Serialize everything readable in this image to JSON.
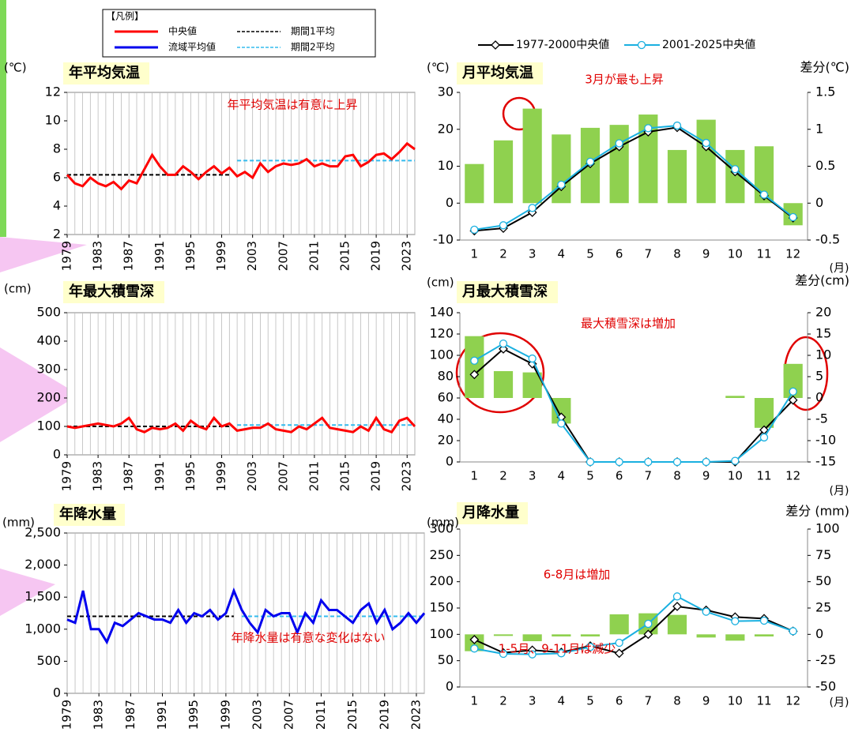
{
  "legend": {
    "title": "【凡例】",
    "items": [
      {
        "label": "中央値",
        "color": "#ff0000",
        "dashed": false
      },
      {
        "label": "期間1平均",
        "color": "#000000",
        "dashed": true
      },
      {
        "label": "流域平均値",
        "color": "#0000ee",
        "dashed": false
      },
      {
        "label": "期間2平均",
        "color": "#33bbee",
        "dashed": true
      }
    ]
  },
  "chart_data": [
    {
      "type": "line",
      "title": "年平均気温",
      "y_unit": "(℃)",
      "annotations": [
        "年平均気温は有意に上昇"
      ],
      "x": [
        1979,
        1980,
        1981,
        1982,
        1983,
        1984,
        1985,
        1986,
        1987,
        1988,
        1989,
        1990,
        1991,
        1992,
        1993,
        1994,
        1995,
        1996,
        1997,
        1998,
        1999,
        2000,
        2001,
        2002,
        2003,
        2004,
        2005,
        2006,
        2007,
        2008,
        2009,
        2010,
        2011,
        2012,
        2013,
        2014,
        2015,
        2016,
        2017,
        2018,
        2019,
        2020,
        2021,
        2022,
        2023,
        2024
      ],
      "xlim": [
        1979,
        2024
      ],
      "xticks": [
        1979,
        1983,
        1987,
        1991,
        1995,
        1999,
        2003,
        2007,
        2011,
        2015,
        2019,
        2023
      ],
      "ylim": [
        2,
        12
      ],
      "yticks": [
        2,
        4,
        6,
        8,
        10,
        12
      ],
      "grid": true,
      "series": [
        {
          "color": "#ff0000",
          "values": [
            6.2,
            5.6,
            5.4,
            6.0,
            5.6,
            5.4,
            5.7,
            5.2,
            5.8,
            5.6,
            6.6,
            7.6,
            6.8,
            6.2,
            6.2,
            6.8,
            6.4,
            5.9,
            6.4,
            6.8,
            6.3,
            6.7,
            6.1,
            6.4,
            6.0,
            7.0,
            6.4,
            6.8,
            7.0,
            6.9,
            7.0,
            7.3,
            6.8,
            7.0,
            6.8,
            6.8,
            7.5,
            7.6,
            6.8,
            7.1,
            7.6,
            7.7,
            7.3,
            7.8,
            8.4,
            8.0
          ]
        }
      ],
      "period_means": [
        {
          "color": "#000000",
          "x": [
            1979,
            2000
          ],
          "value": 6.2
        },
        {
          "color": "#33bbee",
          "x": [
            2001,
            2024
          ],
          "value": 7.2
        }
      ]
    },
    {
      "type": "combo",
      "title": "月平均気温",
      "y_unit": "(℃)",
      "y2_unit": "差分(℃)",
      "x_unit": "(月)",
      "annotations": [
        "3月が最も上昇"
      ],
      "categories": [
        "1",
        "2",
        "3",
        "4",
        "5",
        "6",
        "7",
        "8",
        "9",
        "10",
        "11",
        "12"
      ],
      "ylim": [
        -10,
        30
      ],
      "yticks": [
        -10,
        0,
        10,
        20,
        30
      ],
      "y2lim": [
        -0.5,
        1.5
      ],
      "y2ticks": [
        -0.5,
        0,
        0.5,
        1,
        1.5
      ],
      "series": [
        {
          "name": "1977-2000中央値",
          "color": "#000000",
          "marker": "diamond",
          "values": [
            -7.5,
            -6.8,
            -2.5,
            4.5,
            10.7,
            15.3,
            19.3,
            20.5,
            15.3,
            8.5,
            2,
            -4
          ]
        },
        {
          "name": "2001-2025中央値",
          "color": "#1ab0e0",
          "marker": "circle",
          "values": [
            -7.2,
            -6,
            -1.3,
            5,
            11.2,
            16.2,
            20.3,
            21,
            16.3,
            9.2,
            2.3,
            -3.8
          ]
        },
        {
          "type": "bar",
          "axis": "y2",
          "color": "#8fd14f",
          "values": [
            0.53,
            0.85,
            1.28,
            0.93,
            1.02,
            1.06,
            1.2,
            0.72,
            1.13,
            0.72,
            0.77,
            -0.3
          ]
        }
      ]
    },
    {
      "type": "line",
      "title": "年最大積雪深",
      "y_unit": "(cm)",
      "annotations": [],
      "x": [
        1979,
        1980,
        1981,
        1982,
        1983,
        1984,
        1985,
        1986,
        1987,
        1988,
        1989,
        1990,
        1991,
        1992,
        1993,
        1994,
        1995,
        1996,
        1997,
        1998,
        1999,
        2000,
        2001,
        2002,
        2003,
        2004,
        2005,
        2006,
        2007,
        2008,
        2009,
        2010,
        2011,
        2012,
        2013,
        2014,
        2015,
        2016,
        2017,
        2018,
        2019,
        2020,
        2021,
        2022,
        2023,
        2024
      ],
      "xlim": [
        1979,
        2024
      ],
      "xticks": [
        1979,
        1983,
        1987,
        1991,
        1995,
        1999,
        2003,
        2007,
        2011,
        2015,
        2019,
        2023
      ],
      "ylim": [
        0,
        500
      ],
      "yticks": [
        0,
        100,
        200,
        300,
        400,
        500
      ],
      "grid": true,
      "series": [
        {
          "color": "#ff0000",
          "values": [
            100,
            95,
            100,
            105,
            110,
            105,
            100,
            110,
            130,
            90,
            80,
            95,
            90,
            95,
            110,
            85,
            120,
            100,
            90,
            130,
            100,
            110,
            85,
            90,
            95,
            95,
            110,
            90,
            85,
            80,
            100,
            90,
            110,
            130,
            95,
            90,
            85,
            80,
            100,
            85,
            130,
            90,
            80,
            120,
            130,
            100
          ]
        }
      ],
      "period_means": [
        {
          "color": "#000000",
          "x": [
            1979,
            2000
          ],
          "value": 100
        },
        {
          "color": "#33bbee",
          "x": [
            2001,
            2024
          ],
          "value": 105
        }
      ]
    },
    {
      "type": "combo",
      "title": "月最大積雪深",
      "y_unit": "(cm)",
      "y2_unit": "差分(cm)",
      "x_unit": "(月)",
      "annotations": [
        "最大積雪深は増加"
      ],
      "categories": [
        "1",
        "2",
        "3",
        "4",
        "5",
        "6",
        "7",
        "8",
        "9",
        "10",
        "11",
        "12"
      ],
      "ylim": [
        0,
        140
      ],
      "yticks": [
        0,
        20,
        40,
        60,
        80,
        100,
        120,
        140
      ],
      "y2lim": [
        -15,
        20
      ],
      "y2ticks": [
        -15,
        -10,
        -5,
        0,
        5,
        10,
        15,
        20
      ],
      "series": [
        {
          "color": "#000000",
          "marker": "diamond",
          "values": [
            82,
            106,
            92,
            42,
            0,
            0,
            0,
            0,
            0,
            0,
            30,
            58
          ]
        },
        {
          "color": "#1ab0e0",
          "marker": "circle",
          "values": [
            95,
            111,
            97,
            36,
            0,
            0,
            0,
            0,
            0,
            1,
            23,
            66
          ]
        },
        {
          "type": "bar",
          "axis": "y2",
          "color": "#8fd14f",
          "values": [
            14.5,
            6.3,
            6,
            -6,
            0,
            0,
            0,
            0,
            0,
            0.5,
            -7,
            8
          ]
        }
      ]
    },
    {
      "type": "line",
      "title": "年降水量",
      "y_unit": "(mm)",
      "annotations": [
        "年降水量は有意な変化はない"
      ],
      "x": [
        1979,
        1980,
        1981,
        1982,
        1983,
        1984,
        1985,
        1986,
        1987,
        1988,
        1989,
        1990,
        1991,
        1992,
        1993,
        1994,
        1995,
        1996,
        1997,
        1998,
        1999,
        2000,
        2001,
        2002,
        2003,
        2004,
        2005,
        2006,
        2007,
        2008,
        2009,
        2010,
        2011,
        2012,
        2013,
        2014,
        2015,
        2016,
        2017,
        2018,
        2019,
        2020,
        2021,
        2022,
        2023,
        2024
      ],
      "xlim": [
        1979,
        2024
      ],
      "xticks": [
        1979,
        1983,
        1987,
        1991,
        1995,
        1999,
        2003,
        2007,
        2011,
        2015,
        2019,
        2023
      ],
      "ylim": [
        0,
        2500
      ],
      "yticks": [
        0,
        500,
        {
          "value": 1000,
          "label": "1,000"
        },
        {
          "value": 1500,
          "label": "1,500"
        },
        {
          "value": 2000,
          "label": "2,000"
        },
        {
          "value": 2500,
          "label": "2,500"
        }
      ],
      "grid": true,
      "series": [
        {
          "color": "#0000ee",
          "values": [
            1150,
            1100,
            1600,
            1000,
            1000,
            800,
            1100,
            1050,
            1150,
            1250,
            1200,
            1150,
            1150,
            1100,
            1300,
            1100,
            1250,
            1200,
            1300,
            1150,
            1250,
            1600,
            1300,
            1100,
            950,
            1300,
            1200,
            1250,
            1250,
            950,
            1250,
            1100,
            1450,
            1300,
            1300,
            1200,
            1100,
            1300,
            1400,
            1100,
            1300,
            1000,
            1100,
            1250,
            1100,
            1250
          ]
        }
      ],
      "period_means": [
        {
          "color": "#000000",
          "x": [
            1979,
            2000
          ],
          "value": 1200
        },
        {
          "color": "#33bbee",
          "x": [
            2001,
            2024
          ],
          "value": 1200
        }
      ]
    },
    {
      "type": "combo",
      "title": "月降水量",
      "y_unit": "(mm)",
      "y2_unit": "差分 (mm)",
      "x_unit": "(月)",
      "annotations": [
        "6-8月は増加",
        "1-5月、9-11月は減少"
      ],
      "categories": [
        "1",
        "2",
        "3",
        "4",
        "5",
        "6",
        "7",
        "8",
        "9",
        "10",
        "11",
        "12"
      ],
      "ylim": [
        0,
        300
      ],
      "yticks": [
        0,
        50,
        100,
        150,
        200,
        250,
        300
      ],
      "y2lim": [
        -50,
        100
      ],
      "y2ticks": [
        -50,
        -25,
        0,
        25,
        50,
        75,
        100
      ],
      "series": [
        {
          "color": "#000000",
          "marker": "diamond",
          "values": [
            90,
            65,
            70,
            66,
            78,
            64,
            100,
            153,
            146,
            133,
            130,
            106
          ]
        },
        {
          "color": "#1ab0e0",
          "marker": "circle",
          "values": [
            73,
            63,
            62,
            64,
            76,
            84,
            120,
            172,
            143,
            125,
            126,
            106
          ]
        },
        {
          "type": "bar",
          "axis": "y2",
          "color": "#8fd14f",
          "values": [
            -16,
            -1.5,
            -6.5,
            -2,
            -2,
            19,
            20,
            18.5,
            -3,
            -6,
            -2,
            0
          ]
        }
      ]
    }
  ]
}
